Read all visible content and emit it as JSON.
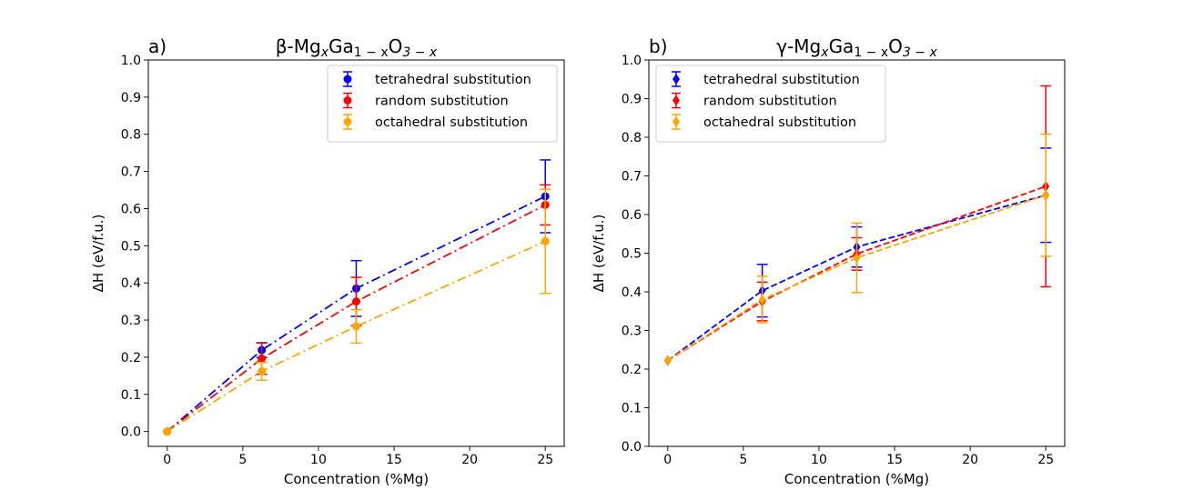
{
  "chart_data": [
    {
      "type": "line",
      "panel_label": "a)",
      "title_parts": [
        "β-Mg",
        "x",
        "Ga",
        "1 − x",
        "O",
        "3 − x"
      ],
      "xlabel": "Concentration (%Mg)",
      "ylabel": "ΔH (eV/f.u.)",
      "xlim": [
        -1.25,
        26.25
      ],
      "ylim": [
        -0.04,
        1.0
      ],
      "xticks": [
        0,
        5,
        10,
        15,
        20,
        25
      ],
      "xtick_labels": [
        "0",
        "5",
        "10",
        "15",
        "20",
        "25"
      ],
      "yticks": [
        0.0,
        0.1,
        0.2,
        0.3,
        0.4,
        0.5,
        0.6,
        0.7,
        0.8,
        0.9,
        1.0
      ],
      "ytick_labels": [
        "0.0",
        "0.1",
        "0.2",
        "0.3",
        "0.4",
        "0.5",
        "0.6",
        "0.7",
        "0.8",
        "0.9",
        "1.0"
      ],
      "marker": "circle",
      "linestyle": "dashdot",
      "legend": "top-right",
      "x": [
        0,
        6.25,
        12.5,
        25
      ],
      "series": [
        {
          "name": "tetrahedral substitution",
          "color": "#0000ff",
          "values": [
            0.0,
            0.219,
            0.385,
            0.633
          ],
          "errors": [
            0.0,
            0.02,
            0.075,
            0.098
          ]
        },
        {
          "name": "random substitution",
          "color": "#ff0000",
          "values": [
            0.0,
            0.196,
            0.35,
            0.61
          ],
          "errors": [
            0.0,
            0.042,
            0.065,
            0.054
          ]
        },
        {
          "name": "octahedral substitution",
          "color": "#ffa500",
          "values": [
            0.0,
            0.162,
            0.283,
            0.512
          ],
          "errors": [
            0.0,
            0.024,
            0.045,
            0.14
          ]
        }
      ]
    },
    {
      "type": "line",
      "panel_label": "b)",
      "title_parts": [
        "γ-Mg",
        "x",
        "Ga",
        "1 − x",
        "O",
        "3 − x"
      ],
      "xlabel": "Concentration (%Mg)",
      "ylabel": "ΔH (eV/f.u.)",
      "xlim": [
        -1.25,
        26.25
      ],
      "ylim": [
        0.0,
        1.0
      ],
      "xticks": [
        0,
        5,
        10,
        15,
        20,
        25
      ],
      "xtick_labels": [
        "0",
        "5",
        "10",
        "15",
        "20",
        "25"
      ],
      "yticks": [
        0.0,
        0.1,
        0.2,
        0.3,
        0.4,
        0.5,
        0.6,
        0.7,
        0.8,
        0.9,
        1.0
      ],
      "ytick_labels": [
        "0.0",
        "0.1",
        "0.2",
        "0.3",
        "0.4",
        "0.5",
        "0.6",
        "0.7",
        "0.8",
        "0.9",
        "1.0"
      ],
      "marker": "diamond",
      "linestyle": "dashed",
      "legend": "top-left",
      "x": [
        0,
        6.25,
        12.5,
        25
      ],
      "series": [
        {
          "name": "tetrahedral substitution",
          "color": "#0000ff",
          "values": [
            0.222,
            0.403,
            0.516,
            0.65
          ],
          "errors": [
            0.0,
            0.068,
            0.052,
            0.122
          ]
        },
        {
          "name": "random substitution",
          "color": "#ff0000",
          "values": [
            0.222,
            0.375,
            0.498,
            0.673
          ],
          "errors": [
            0.0,
            0.05,
            0.042,
            0.26
          ]
        },
        {
          "name": "octahedral substitution",
          "color": "#ffa500",
          "values": [
            0.222,
            0.38,
            0.488,
            0.65
          ],
          "errors": [
            0.0,
            0.06,
            0.09,
            0.158
          ]
        }
      ]
    }
  ]
}
